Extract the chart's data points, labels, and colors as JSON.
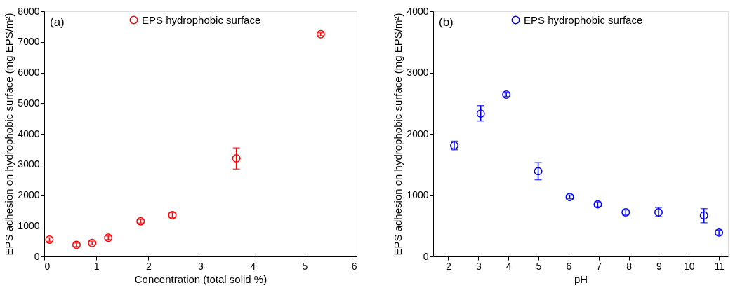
{
  "chart_data": [
    {
      "type": "scatter",
      "xlabel": "Concentration (total solid %)",
      "ylabel": "EPS adhesion on hydrophobic surface (mg EPS/m²)",
      "annotations": [
        "(a)"
      ],
      "xlim": [
        0,
        6
      ],
      "xticks": [
        0,
        1,
        2,
        3,
        4,
        5,
        6
      ],
      "ylim": [
        0,
        8000
      ],
      "yticks": [
        0,
        1000,
        2000,
        3000,
        4000,
        5000,
        6000,
        7000,
        8000
      ],
      "grid": false,
      "legend": "top",
      "marker": "circle",
      "series": [
        {
          "name": "EPS hydrophobic surface",
          "color": "#ff0000",
          "x": [
            0.1,
            0.62,
            0.92,
            1.23,
            1.85,
            2.46,
            3.69,
            5.31
          ],
          "values": [
            550,
            380,
            440,
            610,
            1150,
            1350,
            3200,
            7250
          ],
          "errors": [
            60,
            60,
            60,
            60,
            60,
            80,
            [
              2850,
              3540
            ],
            50
          ]
        }
      ]
    },
    {
      "type": "scatter",
      "xlabel": "pH",
      "ylabel": "EPS adhesion on hydrophobic surface (mg EPS/m²)",
      "annotations": [
        "(b)"
      ],
      "xlim": [
        1.5,
        11.3
      ],
      "xticks": [
        2,
        3,
        4,
        5,
        6,
        7,
        8,
        9,
        10,
        11
      ],
      "ylim": [
        0,
        4000
      ],
      "yticks": [
        0,
        1000,
        2000,
        3000,
        4000
      ],
      "grid": false,
      "legend": "top",
      "marker": "circle",
      "series": [
        {
          "name": "EPS hydrophobic surface",
          "color": "#0000ff",
          "x": [
            2.2,
            3.08,
            3.93,
            4.99,
            6.04,
            6.97,
            7.9,
            8.99,
            10.5,
            11.0
          ],
          "values": [
            1810,
            2330,
            2640,
            1390,
            970,
            850,
            720,
            720,
            670,
            390
          ],
          "errors": [
            [
              1740,
              1880
            ],
            [
              2210,
              2460
            ],
            30,
            [
              1250,
              1530
            ],
            30,
            40,
            40,
            [
              650,
              800
            ],
            [
              550,
              780
            ],
            40
          ]
        }
      ]
    }
  ]
}
